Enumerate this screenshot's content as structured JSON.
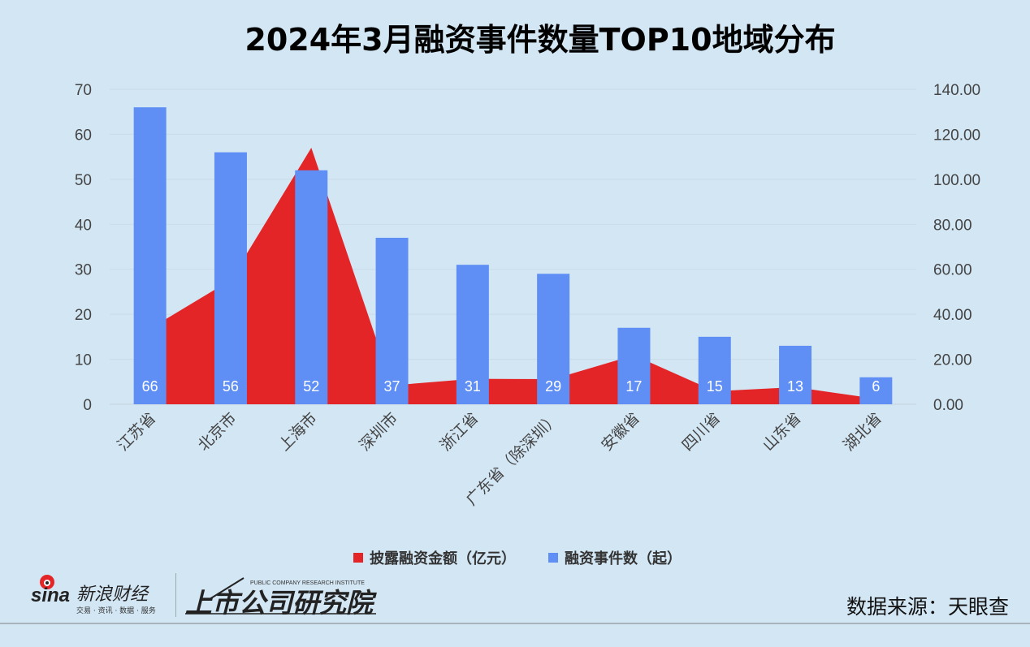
{
  "title": "2024年3月融资事件数量TOP10地域分布",
  "chart_data": {
    "type": "bar+area",
    "title": "2024年3月融资事件数量TOP10地域分布",
    "categories": [
      "江苏省",
      "北京市",
      "上海市",
      "深圳市",
      "浙江省",
      "广东省（除深圳）",
      "安徽省",
      "四川省",
      "山东省",
      "湖北省"
    ],
    "series": [
      {
        "name": "披露融资金额（亿元）",
        "type": "area",
        "axis": "right",
        "color": "#e42527",
        "values": [
          33.6,
          55.2,
          114.0,
          8.4,
          11.3,
          11.2,
          21.8,
          5.8,
          7.6,
          2.5
        ]
      },
      {
        "name": "融资事件数（起）",
        "type": "bar",
        "axis": "left",
        "color": "#5f8ff5",
        "values": [
          66,
          56,
          52,
          37,
          31,
          29,
          17,
          15,
          13,
          6
        ]
      }
    ],
    "left_axis": {
      "range": [
        0,
        70
      ],
      "ticks": [
        "0",
        "10",
        "20",
        "30",
        "40",
        "50",
        "60",
        "70"
      ]
    },
    "right_axis": {
      "range": [
        0,
        140
      ],
      "ticks": [
        "0.00",
        "20.00",
        "40.00",
        "60.00",
        "80.00",
        "100.00",
        "120.00",
        "140.00"
      ]
    },
    "grid": true,
    "legend_position": "bottom"
  },
  "source": "数据来源：天眼查",
  "logos": {
    "sina": "sina 新浪财经",
    "sina_tagline": "交易 · 资讯 · 数据 · 服务",
    "institute": "上市公司研究院",
    "institute_en": "PUBLIC COMPANY RESEARCH INSTITUTE"
  }
}
